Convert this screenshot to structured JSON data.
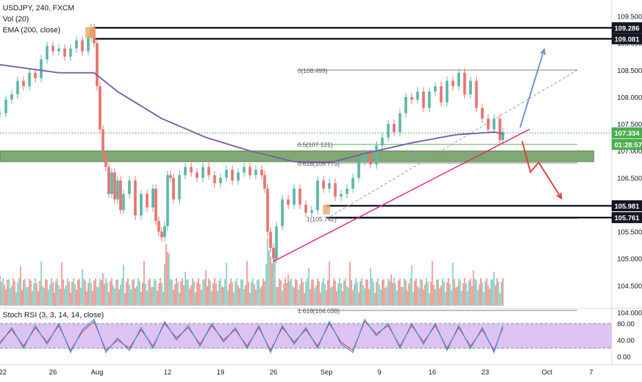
{
  "header": {
    "symbol_line": "USDJPY, 240, FXCM",
    "volume_label": "Vol (20)",
    "ema_label": "EMA (200, close)",
    "stoch_label": "Stoch RSI (3, 3, 14, 14, close)"
  },
  "colors": {
    "up": "#5fb8a8",
    "down": "#e8756f",
    "vol_up": "#8fd0c6",
    "vol_down": "#f09a94",
    "ema": "#7b5ea7",
    "trend": "#e91e8c",
    "zone": "#6b9a5c",
    "fib_mid": "#4caf50",
    "stoch_k": "#2196f3",
    "stoch_d": "#f44336",
    "stoch_band": "#d7b8f0",
    "arrow_up": "#6a8fd0",
    "arrow_down": "#e53935"
  },
  "price_axis": {
    "min": 104.0,
    "max": 109.75,
    "ticks": [
      "109.500",
      "109.000",
      "108.500",
      "108.000",
      "107.500",
      "107.000",
      "106.500",
      "106.000",
      "105.500",
      "105.000",
      "104.500",
      "104.000"
    ]
  },
  "price_tags": [
    {
      "label": "109.286",
      "value": 109.286,
      "style": "dark"
    },
    {
      "label": "109.081",
      "value": 109.081,
      "style": "dark"
    },
    {
      "label": "107.334",
      "value": 107.334,
      "style": "green"
    },
    {
      "label": "01:28:57",
      "value": 107.12,
      "style": "green"
    },
    {
      "label": "105.981",
      "value": 105.981,
      "style": "dark"
    },
    {
      "label": "105.761",
      "value": 105.761,
      "style": "dark"
    }
  ],
  "time_axis": [
    {
      "label": "22",
      "x": 0
    },
    {
      "label": "26",
      "x": 18
    },
    {
      "label": "Aug",
      "x": 33
    },
    {
      "label": "12",
      "x": 57
    },
    {
      "label": "19",
      "x": 75
    },
    {
      "label": "26",
      "x": 93
    },
    {
      "label": "Sep",
      "x": 111
    },
    {
      "label": "9",
      "x": 129
    },
    {
      "label": "16",
      "x": 147
    },
    {
      "label": "23",
      "x": 165
    },
    {
      "label": "Oct",
      "x": 186
    },
    {
      "label": "7",
      "x": 201
    }
  ],
  "fib_levels": [
    {
      "label": "0(108.499)",
      "value": 108.499
    },
    {
      "label": "0.5(107.121)",
      "value": 107.121
    },
    {
      "label": "0.618(106.775)",
      "value": 106.775
    },
    {
      "label": "1(105.742)",
      "value": 105.742
    },
    {
      "label": "1.618(104.038)",
      "value": 104.038
    }
  ],
  "stoch_axis": {
    "ticks": [
      "80.00",
      "40.00",
      "0.00"
    ],
    "band": [
      20,
      80
    ]
  },
  "chart_data": {
    "type": "candlestick",
    "title": "USDJPY, 240, FXCM",
    "x_unit": "trading day index (0 = Jul 22)",
    "ylim": [
      104.0,
      109.75
    ],
    "ohlc_close_path": [
      [
        0,
        107.7
      ],
      [
        2,
        107.95
      ],
      [
        4,
        108.05
      ],
      [
        6,
        108.3
      ],
      [
        8,
        108.2
      ],
      [
        10,
        108.45
      ],
      [
        12,
        108.35
      ],
      [
        14,
        108.7
      ],
      [
        16,
        108.95
      ],
      [
        18,
        108.85
      ],
      [
        20,
        108.9
      ],
      [
        22,
        108.75
      ],
      [
        24,
        108.9
      ],
      [
        26,
        109.05
      ],
      [
        28,
        108.85
      ],
      [
        30,
        109.1
      ],
      [
        31,
        109.28
      ],
      [
        32,
        109.0
      ],
      [
        33,
        108.2
      ],
      [
        34,
        107.4
      ],
      [
        35,
        106.9
      ],
      [
        36,
        106.7
      ],
      [
        37,
        106.2
      ],
      [
        38,
        106.6
      ],
      [
        39,
        106.1
      ],
      [
        40,
        106.45
      ],
      [
        41,
        105.9
      ],
      [
        42,
        106.2
      ],
      [
        44,
        106.45
      ],
      [
        46,
        105.8
      ],
      [
        48,
        106.2
      ],
      [
        50,
        105.95
      ],
      [
        52,
        106.3
      ],
      [
        53,
        105.7
      ],
      [
        54,
        105.5
      ],
      [
        55,
        105.4
      ],
      [
        56,
        105.6
      ],
      [
        57,
        106.55
      ],
      [
        58,
        106.5
      ],
      [
        59,
        106.1
      ],
      [
        61,
        106.55
      ],
      [
        63,
        106.7
      ],
      [
        65,
        106.6
      ],
      [
        67,
        106.5
      ],
      [
        69,
        106.7
      ],
      [
        71,
        106.55
      ],
      [
        73,
        106.4
      ],
      [
        75,
        106.5
      ],
      [
        77,
        106.65
      ],
      [
        79,
        106.45
      ],
      [
        81,
        106.6
      ],
      [
        83,
        106.7
      ],
      [
        85,
        106.55
      ],
      [
        87,
        106.65
      ],
      [
        89,
        106.55
      ],
      [
        90,
        106.3
      ],
      [
        91,
        105.5
      ],
      [
        92,
        105.2
      ],
      [
        93,
        105.0
      ],
      [
        94,
        105.6
      ],
      [
        96,
        106.1
      ],
      [
        98,
        106.0
      ],
      [
        100,
        106.3
      ],
      [
        102,
        106.0
      ],
      [
        104,
        105.85
      ],
      [
        106,
        105.9
      ],
      [
        108,
        106.45
      ],
      [
        110,
        106.3
      ],
      [
        112,
        106.4
      ],
      [
        114,
        106.15
      ],
      [
        116,
        106.2
      ],
      [
        118,
        106.3
      ],
      [
        120,
        106.5
      ],
      [
        122,
        106.8
      ],
      [
        124,
        106.95
      ],
      [
        126,
        106.75
      ],
      [
        128,
        107.1
      ],
      [
        130,
        107.25
      ],
      [
        132,
        107.5
      ],
      [
        134,
        107.35
      ],
      [
        136,
        107.7
      ],
      [
        138,
        108.0
      ],
      [
        140,
        107.95
      ],
      [
        142,
        108.1
      ],
      [
        144,
        107.8
      ],
      [
        146,
        108.1
      ],
      [
        148,
        108.2
      ],
      [
        150,
        107.9
      ],
      [
        152,
        108.3
      ],
      [
        154,
        108.2
      ],
      [
        156,
        108.45
      ],
      [
        158,
        108.05
      ],
      [
        160,
        108.3
      ],
      [
        162,
        107.8
      ],
      [
        164,
        107.6
      ],
      [
        166,
        107.4
      ],
      [
        168,
        107.6
      ],
      [
        170,
        107.2
      ],
      [
        171,
        107.35
      ]
    ],
    "ema200": [
      [
        0,
        108.6
      ],
      [
        20,
        108.45
      ],
      [
        32,
        108.45
      ],
      [
        40,
        108.1
      ],
      [
        55,
        107.6
      ],
      [
        70,
        107.25
      ],
      [
        85,
        107.0
      ],
      [
        100,
        106.8
      ],
      [
        112,
        106.78
      ],
      [
        124,
        106.95
      ],
      [
        140,
        107.15
      ],
      [
        155,
        107.3
      ],
      [
        168,
        107.35
      ],
      [
        171,
        107.32
      ]
    ],
    "horizontal_levels": [
      109.286,
      109.081,
      107.334,
      105.981,
      105.761
    ],
    "support_zone": [
      106.8,
      107.0
    ],
    "trendline": {
      "start": [
        93,
        104.95
      ],
      "end": [
        180,
        107.4
      ]
    },
    "fib_dashed_line": {
      "start": [
        111,
        105.74
      ],
      "end": [
        186,
        108.5
      ]
    },
    "volume_note": "Vol (20)",
    "stoch_rsi": {
      "k": [
        [
          0,
          30
        ],
        [
          4,
          70
        ],
        [
          8,
          20
        ],
        [
          12,
          75
        ],
        [
          16,
          30
        ],
        [
          20,
          80
        ],
        [
          24,
          10
        ],
        [
          28,
          65
        ],
        [
          32,
          90
        ],
        [
          36,
          10
        ],
        [
          40,
          45
        ],
        [
          44,
          15
        ],
        [
          48,
          70
        ],
        [
          52,
          20
        ],
        [
          56,
          85
        ],
        [
          60,
          40
        ],
        [
          64,
          75
        ],
        [
          68,
          25
        ],
        [
          72,
          80
        ],
        [
          76,
          35
        ],
        [
          80,
          70
        ],
        [
          84,
          20
        ],
        [
          88,
          75
        ],
        [
          92,
          10
        ],
        [
          96,
          75
        ],
        [
          100,
          30
        ],
        [
          104,
          70
        ],
        [
          108,
          20
        ],
        [
          112,
          85
        ],
        [
          116,
          30
        ],
        [
          120,
          10
        ],
        [
          124,
          90
        ],
        [
          128,
          50
        ],
        [
          132,
          80
        ],
        [
          136,
          20
        ],
        [
          140,
          80
        ],
        [
          144,
          30
        ],
        [
          148,
          80
        ],
        [
          152,
          15
        ],
        [
          156,
          75
        ],
        [
          160,
          20
        ],
        [
          164,
          70
        ],
        [
          168,
          10
        ],
        [
          171,
          75
        ]
      ],
      "d": [
        [
          0,
          35
        ],
        [
          4,
          65
        ],
        [
          8,
          25
        ],
        [
          12,
          70
        ],
        [
          16,
          35
        ],
        [
          20,
          75
        ],
        [
          24,
          15
        ],
        [
          28,
          60
        ],
        [
          32,
          85
        ],
        [
          36,
          15
        ],
        [
          40,
          40
        ],
        [
          44,
          20
        ],
        [
          48,
          65
        ],
        [
          52,
          25
        ],
        [
          56,
          80
        ],
        [
          60,
          45
        ],
        [
          64,
          70
        ],
        [
          68,
          30
        ],
        [
          72,
          75
        ],
        [
          76,
          40
        ],
        [
          80,
          65
        ],
        [
          84,
          25
        ],
        [
          88,
          70
        ],
        [
          92,
          15
        ],
        [
          96,
          70
        ],
        [
          100,
          35
        ],
        [
          104,
          65
        ],
        [
          108,
          25
        ],
        [
          112,
          80
        ],
        [
          116,
          35
        ],
        [
          120,
          15
        ],
        [
          124,
          85
        ],
        [
          128,
          55
        ],
        [
          132,
          75
        ],
        [
          136,
          25
        ],
        [
          140,
          75
        ],
        [
          144,
          35
        ],
        [
          148,
          75
        ],
        [
          152,
          20
        ],
        [
          156,
          70
        ],
        [
          160,
          25
        ],
        [
          164,
          65
        ],
        [
          168,
          15
        ],
        [
          171,
          70
        ]
      ]
    }
  }
}
